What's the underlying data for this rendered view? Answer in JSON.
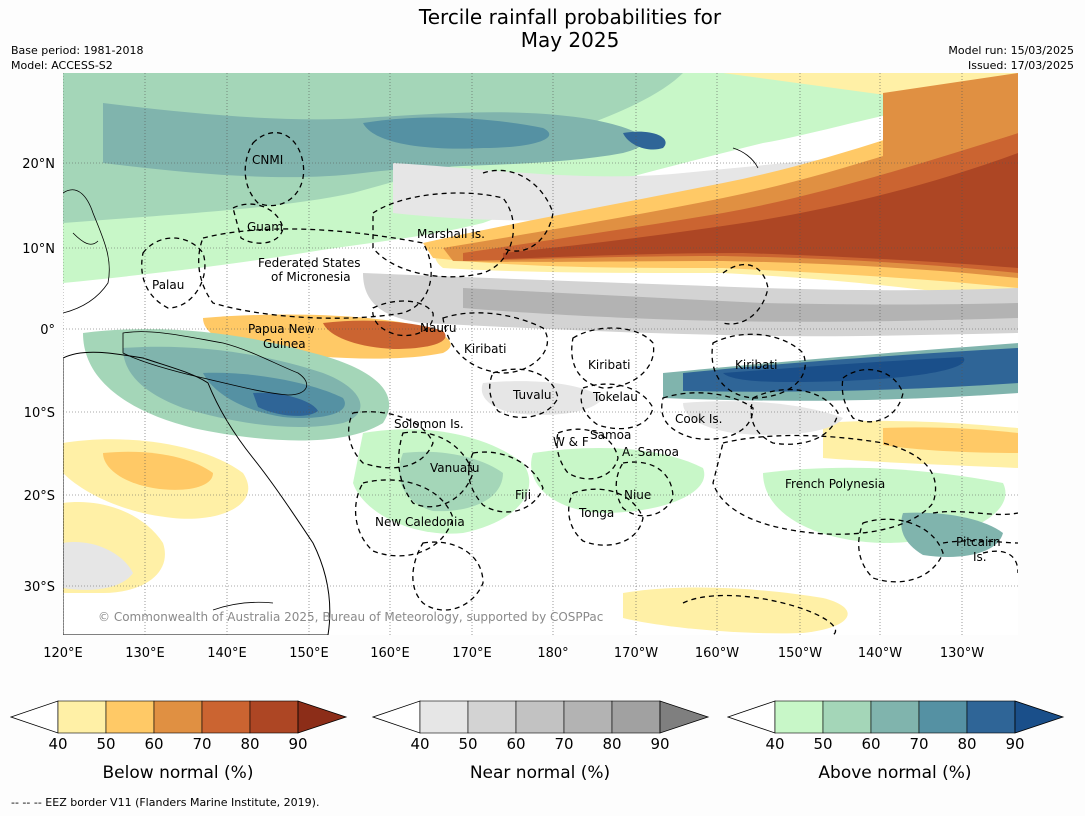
{
  "header": {
    "title_line1": "Tercile rainfall probabilities for",
    "title_line2": "May 2025",
    "base_period": "Base period: 1981-2018",
    "model": "Model: ACCESS-S2",
    "model_run": "Model run: 15/03/2025",
    "issued": "Issued: 17/03/2025"
  },
  "map": {
    "lat_ticks": [
      "20°N",
      "10°N",
      "0°",
      "10°S",
      "20°S",
      "30°S"
    ],
    "lon_ticks": [
      "120°E",
      "130°E",
      "140°E",
      "150°E",
      "160°E",
      "170°E",
      "180°",
      "170°W",
      "160°W",
      "150°W",
      "140°W",
      "130°W"
    ],
    "copyright": "© Commonwealth of Australia 2025, Bureau of Meteorology, supported by COSPPac",
    "regions": [
      {
        "name": "CNMI"
      },
      {
        "name": "Guam"
      },
      {
        "name": "Palau"
      },
      {
        "name": "Federated States"
      },
      {
        "name": "of Micronesia"
      },
      {
        "name": "Marshall Is."
      },
      {
        "name": "Papua New"
      },
      {
        "name": "Guinea"
      },
      {
        "name": "Nauru"
      },
      {
        "name": "Kiribati"
      },
      {
        "name": "Kiribati"
      },
      {
        "name": "Kiribati"
      },
      {
        "name": "Tuvalu"
      },
      {
        "name": "Tokelau"
      },
      {
        "name": "Cook Is."
      },
      {
        "name": "Solomon Is."
      },
      {
        "name": "Samoa"
      },
      {
        "name": "W & F"
      },
      {
        "name": "A. Samoa"
      },
      {
        "name": "Vanuatu"
      },
      {
        "name": "Fiji"
      },
      {
        "name": "Niue"
      },
      {
        "name": "Tonga"
      },
      {
        "name": "French Polynesia"
      },
      {
        "name": "New Caledonia"
      },
      {
        "name": "Pitcairn"
      },
      {
        "name": "Is."
      }
    ]
  },
  "colorbars": [
    {
      "label": "Below normal (%)",
      "ticks": [
        "40",
        "50",
        "60",
        "70",
        "80",
        "90"
      ],
      "colors": [
        "#ffffff",
        "#fff0a6",
        "#ffc966",
        "#e09042",
        "#cb6431",
        "#ad4624",
        "#8c2d18"
      ]
    },
    {
      "label": "Near normal (%)",
      "ticks": [
        "40",
        "50",
        "60",
        "70",
        "80",
        "90"
      ],
      "colors": [
        "#ffffff",
        "#e6e6e6",
        "#d3d3d3",
        "#c2c2c2",
        "#b3b3b3",
        "#a1a1a1",
        "#7f7f7f"
      ]
    },
    {
      "label": "Above normal (%)",
      "ticks": [
        "40",
        "50",
        "60",
        "70",
        "80",
        "90"
      ],
      "colors": [
        "#ffffff",
        "#c8f7c8",
        "#a4d6b8",
        "#80b4ad",
        "#5591a3",
        "#2f6597",
        "#1a4f8a"
      ]
    }
  ],
  "footer": "--  --  -- EEZ border V11 (Flanders Marine Institute, 2019)."
}
